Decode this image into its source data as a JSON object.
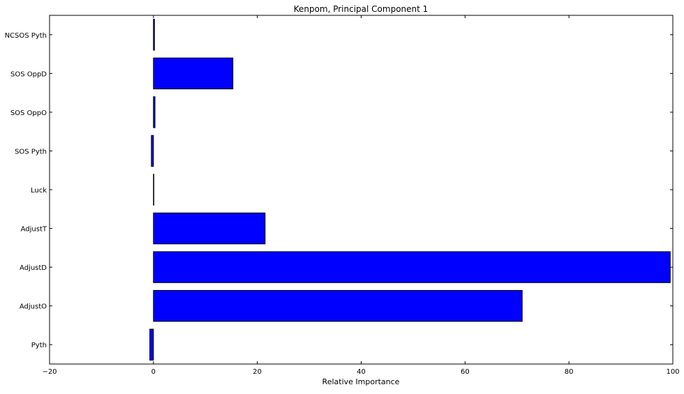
{
  "chart_data": {
    "type": "bar",
    "orientation": "horizontal",
    "title": "Kenpom, Principal Component 1",
    "xlabel": "Relative Importance",
    "ylabel": "",
    "xlim": [
      -20,
      100
    ],
    "xticks": [
      -20,
      0,
      20,
      40,
      60,
      80,
      100
    ],
    "categories": [
      "NCSOS Pyth",
      "SOS OppD",
      "SOS OppO",
      "SOS Pyth",
      "Luck",
      "AdjustT",
      "AdjustD",
      "AdjustO",
      "Pyth"
    ],
    "values": [
      0.2,
      15.3,
      0.3,
      -0.4,
      0.0,
      21.5,
      99.5,
      71.0,
      -0.7
    ],
    "grid": false,
    "legend": "none",
    "bar_color": "#0000ff",
    "edge_color": "#000000"
  }
}
